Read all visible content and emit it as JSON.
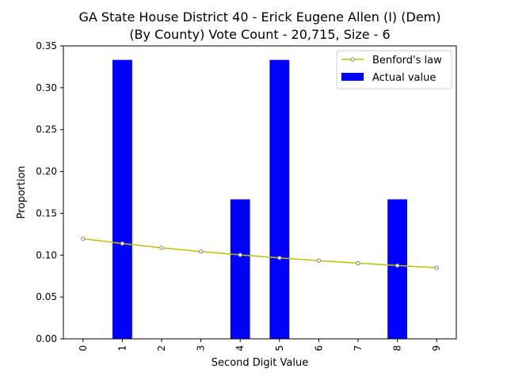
{
  "chart_data": {
    "type": "bar",
    "title_line1": "GA State House District 40 - Erick Eugene Allen (I) (Dem)",
    "title_line2": "(By County) Vote Count - 20,715, Size - 6",
    "xlabel": "Second Digit Value",
    "ylabel": "Proportion",
    "categories": [
      "0",
      "1",
      "2",
      "3",
      "4",
      "5",
      "6",
      "7",
      "8",
      "9"
    ],
    "ylim": [
      0,
      0.35
    ],
    "yticks": [
      "0.00",
      "0.05",
      "0.10",
      "0.15",
      "0.20",
      "0.25",
      "0.30",
      "0.35"
    ],
    "legend_position": "top-right",
    "grid": false,
    "series": [
      {
        "name": "Actual value",
        "kind": "bar",
        "color": "#0000ff",
        "values": [
          0,
          0.3333,
          0,
          0,
          0.1667,
          0.3333,
          0,
          0,
          0.1667,
          0
        ]
      },
      {
        "name": "Benford's law",
        "kind": "line",
        "color": "#bfbf00",
        "marker_color": "#808080",
        "values": [
          0.1197,
          0.1139,
          0.1088,
          0.1043,
          0.1003,
          0.0967,
          0.0934,
          0.0904,
          0.0876,
          0.085
        ]
      }
    ]
  }
}
